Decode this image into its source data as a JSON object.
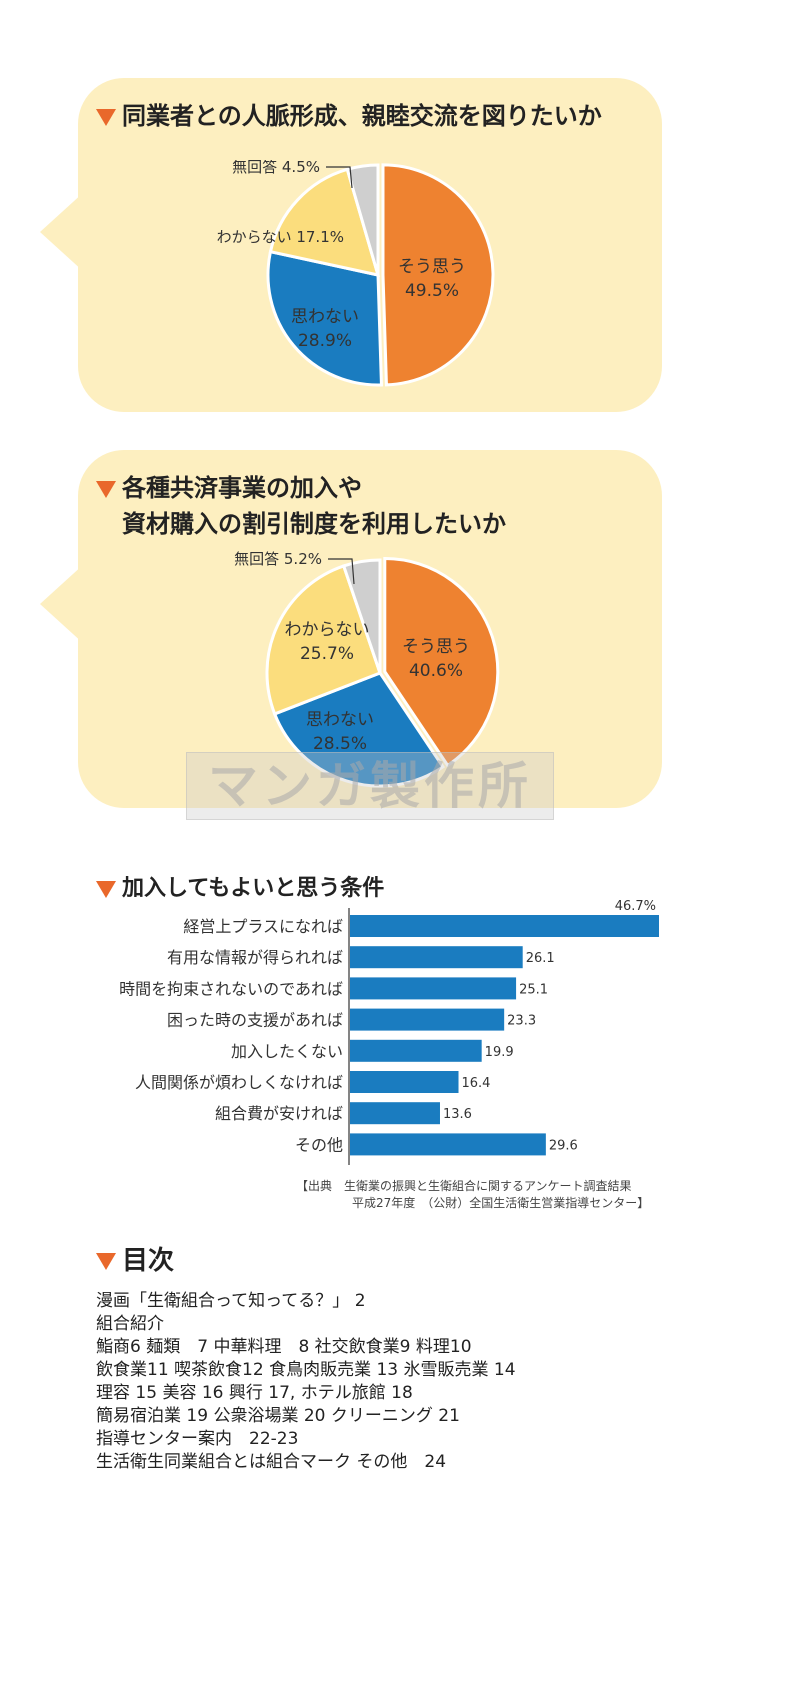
{
  "pie1": {
    "title": "同業者との人脈形成、親睦交流を図りたいか",
    "chart_data": {
      "type": "pie",
      "title": "同業者との人脈形成、親睦交流を図りたいか",
      "slices": [
        {
          "label": "そう思う",
          "value": 49.5,
          "display": "49.5%",
          "color": "#ee8230"
        },
        {
          "label": "思わない",
          "value": 28.9,
          "display": "28.9%",
          "color": "#1a7cc0"
        },
        {
          "label": "わからない",
          "value": 17.1,
          "display": "17.1%",
          "color": "#fbdd7d"
        },
        {
          "label": "無回答",
          "value": 4.5,
          "display": "4.5%",
          "color": "#cfcfcf"
        }
      ]
    }
  },
  "pie2": {
    "title_line1": "各種共済事業の加入や",
    "title_line2": "資材購入の割引制度を利用したいか",
    "chart_data": {
      "type": "pie",
      "title": "各種共済事業の加入や資材購入の割引制度を利用したいか",
      "slices": [
        {
          "label": "そう思う",
          "value": 40.6,
          "display": "40.6%",
          "color": "#ee8230"
        },
        {
          "label": "思わない",
          "value": 28.5,
          "display": "28.5%",
          "color": "#1a7cc0"
        },
        {
          "label": "わからない",
          "value": 25.7,
          "display": "25.7%",
          "color": "#fbdd7d"
        },
        {
          "label": "無回答",
          "value": 5.2,
          "display": "5.2%",
          "color": "#cfcfcf"
        }
      ]
    }
  },
  "watermark": "マンガ製作所",
  "bar": {
    "title": "加入してもよいと思う条件",
    "chart_data": {
      "type": "bar",
      "orientation": "horizontal",
      "title": "加入してもよいと思う条件",
      "categories": [
        "経営上プラスになれば",
        "有用な情報が得られれば",
        "時間を拘束されないのであれば",
        "困った時の支援があれば",
        "加入したくない",
        "人間関係が煩わしくなければ",
        "組合費が安ければ",
        "その他"
      ],
      "values": [
        46.7,
        26.1,
        25.1,
        23.3,
        19.9,
        16.4,
        13.6,
        29.6
      ],
      "value_labels": [
        "46.7%",
        "26.1",
        "25.1",
        "23.3",
        "19.9",
        "16.4",
        "13.6",
        "29.6"
      ],
      "xlim": [
        0,
        46.7
      ],
      "color": "#1a7cc0"
    }
  },
  "source": {
    "line1": "【出典　生衛業の振興と生衛組合に関するアンケート調査結果",
    "line2": "平成27年度　（公財）全国生活衛生営業指導センター】"
  },
  "toc": {
    "title": "目次",
    "lines": [
      "漫画「生衛組合って知ってる？」 2",
      "組合紹介",
      "鮨商6  麺類　7  中華料理　8  社交飲食業9  料理10",
      "飲食業11  喫茶飲食12  食鳥肉販売業 13  氷雪販売業 14",
      "理容 15  美容 16  興行 17,  ホテル旅館 18",
      "簡易宿泊業 19  公衆浴場業 20  クリーニング 21",
      "指導センター案内　22-23",
      "生活衛生同業組合とは組合マーク その他　24"
    ]
  }
}
